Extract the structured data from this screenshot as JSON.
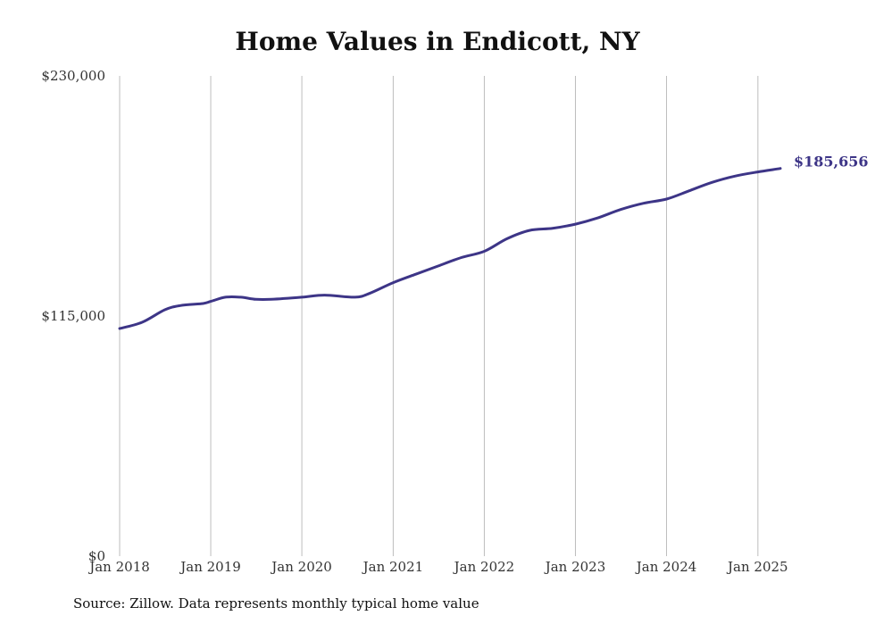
{
  "title": "Home Values in Endicott, NY",
  "source": "Source: Zillow. Data represents monthly typical home value",
  "colors": {
    "line": "#3d3587",
    "grid": "#bdbdbd",
    "text": "#333333"
  },
  "chart_data": {
    "type": "line",
    "title": "Home Values in Endicott, NY",
    "xlabel": "",
    "ylabel": "",
    "ylim": [
      0,
      230000
    ],
    "yticks": [
      0,
      115000,
      230000
    ],
    "ytick_labels": [
      "$0",
      "$115,000",
      "$230,000"
    ],
    "xlim": [
      "2018-01",
      "2025-04"
    ],
    "xticks": [
      "2018-01",
      "2019-01",
      "2020-01",
      "2021-01",
      "2022-01",
      "2023-01",
      "2024-01",
      "2025-01"
    ],
    "xtick_labels": [
      "Jan 2018",
      "Jan 2019",
      "Jan 2020",
      "Jan 2021",
      "Jan 2022",
      "Jan 2023",
      "Jan 2024",
      "Jan 2025"
    ],
    "grid": "vertical",
    "legend": "none",
    "end_label": "$185,656",
    "series": [
      {
        "x": [
          "2018-01",
          "2018-04",
          "2018-07",
          "2018-09",
          "2018-12",
          "2019-01",
          "2019-03",
          "2019-05",
          "2019-07",
          "2019-09",
          "2020-01",
          "2020-04",
          "2020-08",
          "2020-10",
          "2021-01",
          "2021-04",
          "2021-07",
          "2021-10",
          "2022-01",
          "2022-04",
          "2022-07",
          "2022-10",
          "2023-01",
          "2023-04",
          "2023-07",
          "2023-10",
          "2024-01",
          "2024-04",
          "2024-07",
          "2024-10",
          "2025-01",
          "2025-04"
        ],
        "values": [
          109000,
          112000,
          118000,
          120000,
          121000,
          122000,
          124000,
          124000,
          123000,
          123000,
          124000,
          125000,
          124000,
          126000,
          131000,
          135000,
          139000,
          143000,
          146000,
          152000,
          156000,
          157000,
          159000,
          162000,
          166000,
          169000,
          171000,
          175000,
          179000,
          182000,
          184000,
          185656
        ]
      }
    ]
  }
}
